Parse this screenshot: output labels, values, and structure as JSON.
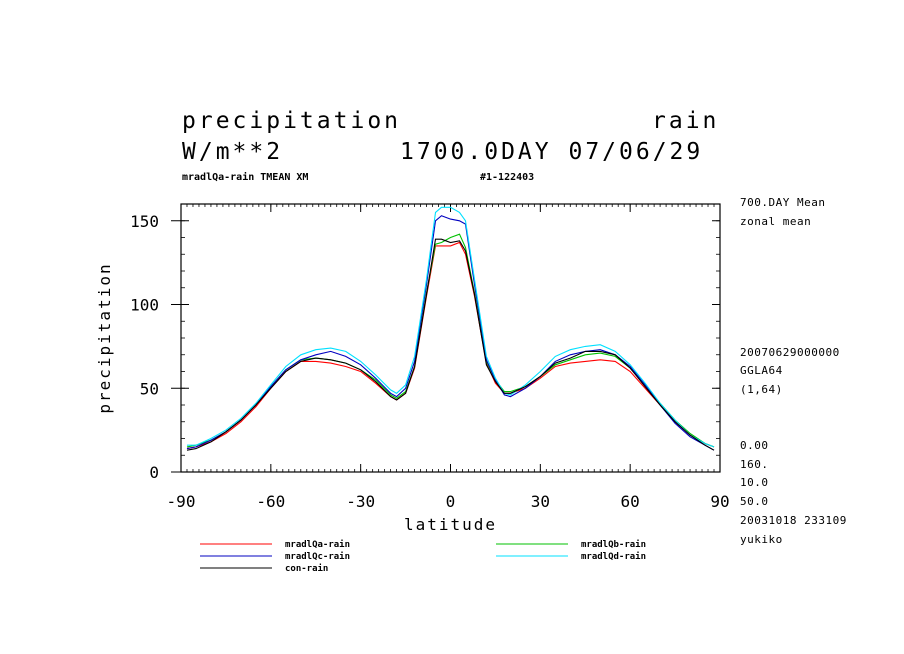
{
  "header": {
    "left_line1": "precipitation",
    "right_line1": "rain",
    "left_line2": "W/m**2",
    "right_line2": "1700.0DAY 07/06/29",
    "sub_left": "mradlQa-rain TMEAN XM",
    "sub_right": "#1-122403"
  },
  "side_info": {
    "line1": "700.DAY Mean",
    "line2": "zonal mean",
    "line3": "20070629000000",
    "line4": "GGLA64",
    "line5": "(1,64)",
    "line6": "0.00",
    "line7": "160.",
    "line8": "10.0",
    "line9": "50.0",
    "line10": "20031018 233109",
    "line11": "yukiko"
  },
  "chart_data": {
    "type": "line",
    "xlabel": "latitude",
    "ylabel": "precipitation",
    "xlim": [
      -90,
      90
    ],
    "ylim": [
      0,
      160
    ],
    "x_ticks": [
      -90,
      -60,
      -30,
      0,
      30,
      60,
      90
    ],
    "x_tick_labels": [
      "-90",
      "-60",
      "-30",
      "0",
      "30",
      "60",
      "90"
    ],
    "y_ticks": [
      0,
      50,
      100,
      150
    ],
    "y_tick_labels": [
      "0",
      "50",
      "100",
      "150"
    ],
    "x": [
      -88,
      -85,
      -80,
      -75,
      -70,
      -65,
      -60,
      -55,
      -50,
      -45,
      -40,
      -35,
      -30,
      -25,
      -20,
      -18,
      -15,
      -12,
      -8,
      -5,
      -3,
      0,
      3,
      5,
      8,
      12,
      15,
      18,
      20,
      25,
      30,
      35,
      40,
      45,
      50,
      55,
      60,
      65,
      70,
      75,
      80,
      85,
      88
    ],
    "series": [
      {
        "name": "mradlQa-rain",
        "color": "#ff0000",
        "values": [
          14,
          15,
          18,
          23,
          30,
          39,
          50,
          60,
          66,
          66,
          65,
          63,
          60,
          53,
          45,
          43,
          47,
          62,
          105,
          135,
          135,
          135,
          137,
          130,
          105,
          65,
          53,
          47,
          47,
          50,
          56,
          63,
          65,
          66,
          67,
          66,
          60,
          50,
          40,
          30,
          22,
          17,
          15
        ]
      },
      {
        "name": "mradlQb-rain",
        "color": "#00c000",
        "values": [
          15,
          16,
          19,
          24,
          31,
          40,
          51,
          61,
          67,
          68,
          67,
          65,
          61,
          55,
          46,
          44,
          48,
          63,
          107,
          136,
          137,
          140,
          142,
          134,
          107,
          66,
          55,
          48,
          48,
          51,
          57,
          64,
          67,
          70,
          71,
          69,
          62,
          52,
          41,
          31,
          23,
          17,
          15
        ]
      },
      {
        "name": "mradlQc-rain",
        "color": "#0000c0",
        "values": [
          14,
          15,
          19,
          24,
          31,
          40,
          51,
          61,
          67,
          70,
          72,
          69,
          64,
          56,
          47,
          45,
          50,
          66,
          112,
          150,
          153,
          151,
          150,
          148,
          112,
          67,
          55,
          46,
          45,
          50,
          57,
          66,
          70,
          72,
          73,
          70,
          63,
          52,
          40,
          29,
          21,
          16,
          13
        ]
      },
      {
        "name": "mradlQd-rain",
        "color": "#00e0ff",
        "values": [
          16,
          16,
          20,
          25,
          32,
          41,
          52,
          63,
          70,
          73,
          74,
          72,
          66,
          58,
          49,
          47,
          52,
          69,
          115,
          155,
          158,
          158,
          155,
          150,
          115,
          69,
          56,
          47,
          46,
          52,
          60,
          69,
          73,
          75,
          76,
          72,
          64,
          53,
          41,
          31,
          22,
          17,
          15
        ]
      },
      {
        "name": "con-rain",
        "color": "#000000",
        "values": [
          13,
          14,
          18,
          24,
          31,
          40,
          50,
          60,
          66,
          68,
          67,
          65,
          61,
          54,
          45,
          43,
          47,
          63,
          106,
          139,
          139,
          137,
          138,
          132,
          106,
          64,
          54,
          47,
          47,
          51,
          57,
          65,
          68,
          72,
          72,
          70,
          62,
          51,
          40,
          30,
          22,
          16,
          13
        ]
      }
    ]
  },
  "legend": [
    {
      "label": "mradlQa-rain",
      "color": "#ff0000"
    },
    {
      "label": "mradlQc-rain",
      "color": "#0000c0"
    },
    {
      "label": "con-rain",
      "color": "#000000"
    },
    {
      "label": "mradlQb-rain",
      "color": "#00c000"
    },
    {
      "label": "mradlQd-rain",
      "color": "#00e0ff"
    }
  ]
}
